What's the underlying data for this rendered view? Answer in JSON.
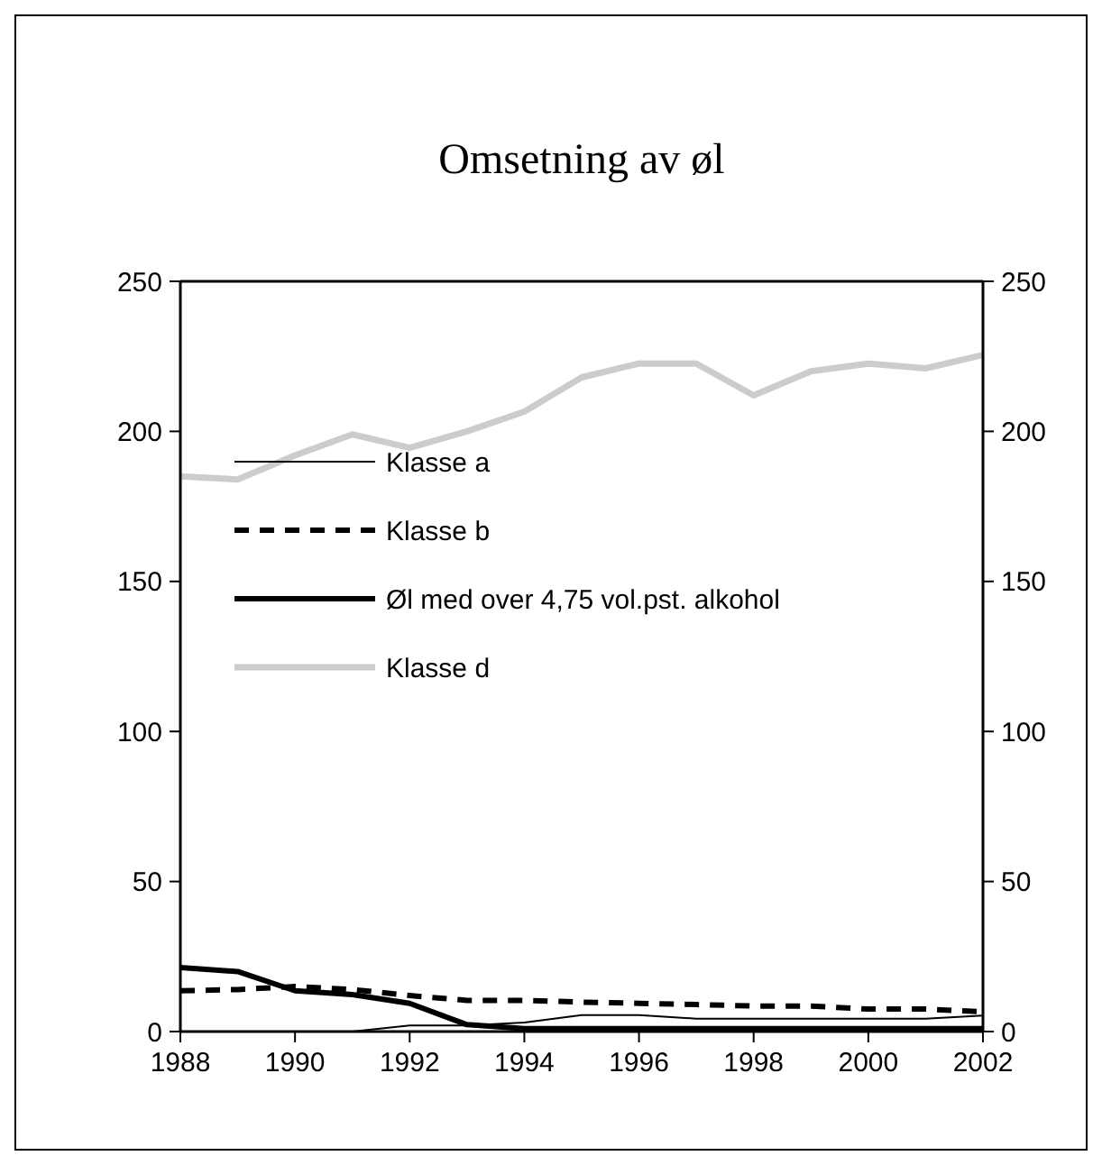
{
  "chart_data": {
    "type": "line",
    "title": "Omsetning av øl",
    "x": [
      1988,
      1989,
      1990,
      1991,
      1992,
      1993,
      1994,
      1995,
      1996,
      1997,
      1998,
      1999,
      2000,
      2001,
      2002
    ],
    "xlim": [
      1988,
      2002
    ],
    "xticks": [
      1988,
      1990,
      1992,
      1994,
      1996,
      1998,
      2000,
      2002
    ],
    "ylim": [
      0,
      250
    ],
    "yticks": [
      0,
      50,
      100,
      150,
      200,
      250
    ],
    "y2lim": [
      0,
      250
    ],
    "y2ticks": [
      0,
      50,
      100,
      150,
      200,
      250
    ],
    "grid": false,
    "legend": "left",
    "marker": "none",
    "series": [
      {
        "name": "Klasse a",
        "color": "#000000",
        "line_style": "solid",
        "values": [
          0,
          0,
          0,
          0,
          2,
          2,
          3,
          5.5,
          5.5,
          4.3,
          4.3,
          4.3,
          4.3,
          4.3,
          5.3
        ]
      },
      {
        "name": "Klasse b",
        "color": "#000000",
        "line_style": "dashed",
        "values": [
          13.6,
          14,
          15,
          14,
          12,
          10.4,
          10.4,
          9.8,
          9.4,
          9,
          8.5,
          8.5,
          7.5,
          7.5,
          6.6
        ]
      },
      {
        "name": "Øl med over 4,75 vol.pst. alkohol",
        "color": "#000000",
        "line_style": "solid",
        "values": [
          21.3,
          20,
          13.6,
          12.3,
          9.4,
          2.3,
          1,
          1,
          1,
          1,
          1,
          1,
          1,
          1,
          1
        ]
      },
      {
        "name": "Klasse d",
        "color": "#cccccc",
        "line_style": "solid",
        "values": [
          185,
          184,
          192,
          199,
          194.5,
          200,
          206.6,
          218,
          222.6,
          222.6,
          212,
          220,
          222.6,
          221,
          225.5
        ]
      }
    ]
  }
}
